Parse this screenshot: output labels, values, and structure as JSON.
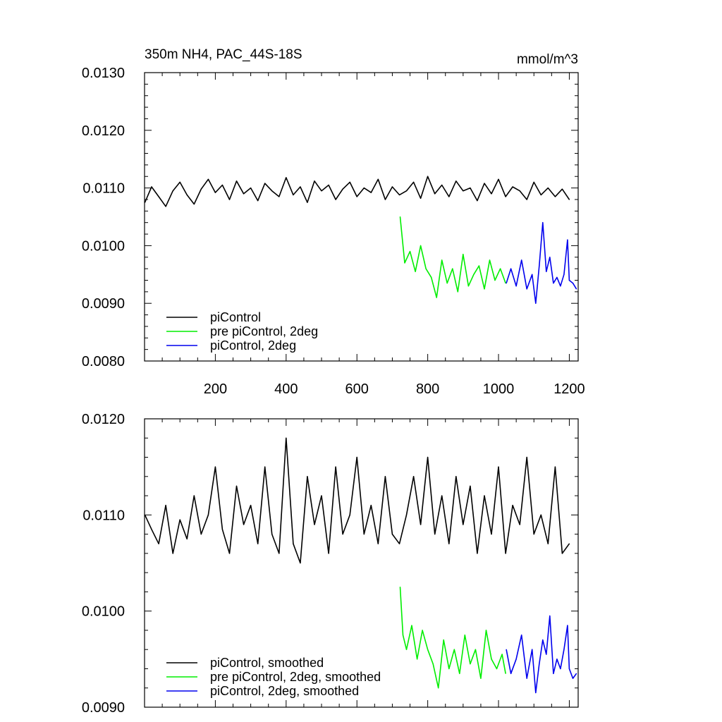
{
  "chart_data": [
    {
      "type": "line",
      "title": "350m NH4, PAC_44S-18S",
      "units": "mmol/m^3",
      "xlim": [
        0,
        1225
      ],
      "ylim": [
        0.008,
        0.013
      ],
      "xticks": [
        200,
        400,
        600,
        800,
        1000,
        1200
      ],
      "xtick_labels": [
        "200",
        "400",
        "600",
        "800",
        "1000",
        "1200"
      ],
      "yticks": [
        0.008,
        0.009,
        0.01,
        0.011,
        0.012,
        0.013
      ],
      "ytick_labels": [
        "0.0080",
        "0.0090",
        "0.0100",
        "0.0110",
        "0.0120",
        "0.0130"
      ],
      "legend_position": "bottom-left",
      "series": [
        {
          "name": "piControl",
          "color": "#000000",
          "x": [
            1,
            20,
            40,
            60,
            80,
            100,
            120,
            140,
            160,
            180,
            200,
            220,
            240,
            260,
            280,
            300,
            320,
            340,
            360,
            380,
            400,
            420,
            440,
            460,
            480,
            500,
            520,
            540,
            560,
            580,
            600,
            620,
            640,
            660,
            680,
            700,
            720,
            740,
            760,
            780,
            800,
            820,
            840,
            860,
            880,
            900,
            920,
            940,
            960,
            980,
            1000,
            1020,
            1040,
            1060,
            1080,
            1100,
            1120,
            1140,
            1160,
            1180,
            1200
          ],
          "y": [
            0.01075,
            0.01102,
            0.01085,
            0.01068,
            0.01095,
            0.0111,
            0.01088,
            0.01072,
            0.01098,
            0.01115,
            0.01092,
            0.01105,
            0.0108,
            0.01112,
            0.0109,
            0.011,
            0.01078,
            0.01108,
            0.01095,
            0.01085,
            0.01118,
            0.01088,
            0.01102,
            0.01075,
            0.01112,
            0.01095,
            0.01105,
            0.0108,
            0.01098,
            0.0111,
            0.01085,
            0.011,
            0.01092,
            0.01115,
            0.0108,
            0.01102,
            0.01088,
            0.01095,
            0.0111,
            0.01082,
            0.0112,
            0.0109,
            0.01105,
            0.01085,
            0.01112,
            0.01095,
            0.011,
            0.01078,
            0.01108,
            0.0109,
            0.01115,
            0.01085,
            0.01102,
            0.01095,
            0.0108,
            0.0111,
            0.01088,
            0.011,
            0.01085,
            0.01098,
            0.0108
          ]
        },
        {
          "name": "pre piControl, 2deg",
          "color": "#00ee00",
          "x": [
            722,
            735,
            750,
            765,
            780,
            795,
            810,
            825,
            840,
            855,
            870,
            885,
            900,
            915,
            930,
            945,
            960,
            975,
            990,
            1005,
            1020
          ],
          "y": [
            0.0105,
            0.0097,
            0.0099,
            0.00955,
            0.01,
            0.0096,
            0.00945,
            0.0091,
            0.00975,
            0.00935,
            0.0096,
            0.0092,
            0.00985,
            0.0093,
            0.0095,
            0.00965,
            0.00925,
            0.00975,
            0.0094,
            0.0096,
            0.00935
          ]
        },
        {
          "name": "piControl, 2deg",
          "color": "#0000ee",
          "x": [
            1022,
            1035,
            1050,
            1065,
            1080,
            1095,
            1105,
            1115,
            1125,
            1135,
            1145,
            1155,
            1165,
            1175,
            1185,
            1195,
            1200,
            1210,
            1220
          ],
          "y": [
            0.00935,
            0.0096,
            0.0093,
            0.00975,
            0.00925,
            0.0095,
            0.009,
            0.00965,
            0.0104,
            0.00955,
            0.0098,
            0.00935,
            0.00945,
            0.0093,
            0.0095,
            0.0101,
            0.0094,
            0.00935,
            0.00925
          ]
        }
      ]
    },
    {
      "type": "line",
      "title": "",
      "xlim": [
        0,
        1225
      ],
      "ylim": [
        0.009,
        0.012
      ],
      "xticks": [
        200,
        400,
        600,
        800,
        1000,
        1200
      ],
      "xtick_labels": [],
      "yticks": [
        0.009,
        0.01,
        0.011,
        0.012
      ],
      "ytick_labels": [
        "0.0090",
        "0.0100",
        "0.0110",
        "0.0120"
      ],
      "legend_position": "bottom-left",
      "series": [
        {
          "name": "piControl, smoothed",
          "color": "#000000",
          "x": [
            1,
            20,
            40,
            60,
            80,
            100,
            120,
            140,
            160,
            180,
            200,
            220,
            240,
            260,
            280,
            300,
            320,
            340,
            360,
            380,
            400,
            420,
            440,
            460,
            480,
            500,
            520,
            540,
            560,
            580,
            600,
            620,
            640,
            660,
            680,
            700,
            720,
            740,
            760,
            780,
            800,
            820,
            840,
            860,
            880,
            900,
            920,
            940,
            960,
            980,
            1000,
            1020,
            1040,
            1060,
            1080,
            1100,
            1120,
            1140,
            1160,
            1180,
            1200
          ],
          "y": [
            0.011,
            0.01085,
            0.0107,
            0.0111,
            0.0106,
            0.01095,
            0.01075,
            0.0112,
            0.0108,
            0.011,
            0.0115,
            0.01085,
            0.0106,
            0.0113,
            0.0109,
            0.0111,
            0.0107,
            0.0115,
            0.0108,
            0.0106,
            0.0118,
            0.0107,
            0.0105,
            0.0114,
            0.0109,
            0.0112,
            0.0106,
            0.0115,
            0.0108,
            0.011,
            0.0116,
            0.0108,
            0.0111,
            0.0107,
            0.0114,
            0.0108,
            0.0107,
            0.011,
            0.0114,
            0.0109,
            0.0116,
            0.0108,
            0.0112,
            0.0107,
            0.0114,
            0.0109,
            0.0113,
            0.0106,
            0.0112,
            0.0108,
            0.0115,
            0.0106,
            0.0111,
            0.0109,
            0.0116,
            0.0108,
            0.011,
            0.0107,
            0.0115,
            0.0106,
            0.0107
          ]
        },
        {
          "name": "pre piControl, 2deg, smoothed",
          "color": "#00ee00",
          "x": [
            722,
            730,
            740,
            755,
            770,
            785,
            800,
            815,
            830,
            845,
            860,
            875,
            890,
            905,
            920,
            935,
            950,
            965,
            980,
            995,
            1010,
            1020
          ],
          "y": [
            0.01025,
            0.00975,
            0.0096,
            0.00985,
            0.0095,
            0.0098,
            0.0096,
            0.00945,
            0.0092,
            0.0097,
            0.0094,
            0.0096,
            0.00935,
            0.00975,
            0.00945,
            0.0096,
            0.0093,
            0.0098,
            0.0095,
            0.0094,
            0.00955,
            0.00935
          ]
        },
        {
          "name": "piControl, 2deg, smoothed",
          "color": "#0000ee",
          "x": [
            1022,
            1035,
            1050,
            1065,
            1080,
            1095,
            1105,
            1115,
            1125,
            1135,
            1145,
            1155,
            1165,
            1175,
            1185,
            1195,
            1200,
            1210,
            1220
          ],
          "y": [
            0.0096,
            0.00935,
            0.0095,
            0.00975,
            0.0093,
            0.0096,
            0.00915,
            0.00945,
            0.0097,
            0.00955,
            0.00995,
            0.00935,
            0.0095,
            0.0094,
            0.0096,
            0.00985,
            0.0094,
            0.0093,
            0.00935
          ]
        }
      ]
    }
  ]
}
